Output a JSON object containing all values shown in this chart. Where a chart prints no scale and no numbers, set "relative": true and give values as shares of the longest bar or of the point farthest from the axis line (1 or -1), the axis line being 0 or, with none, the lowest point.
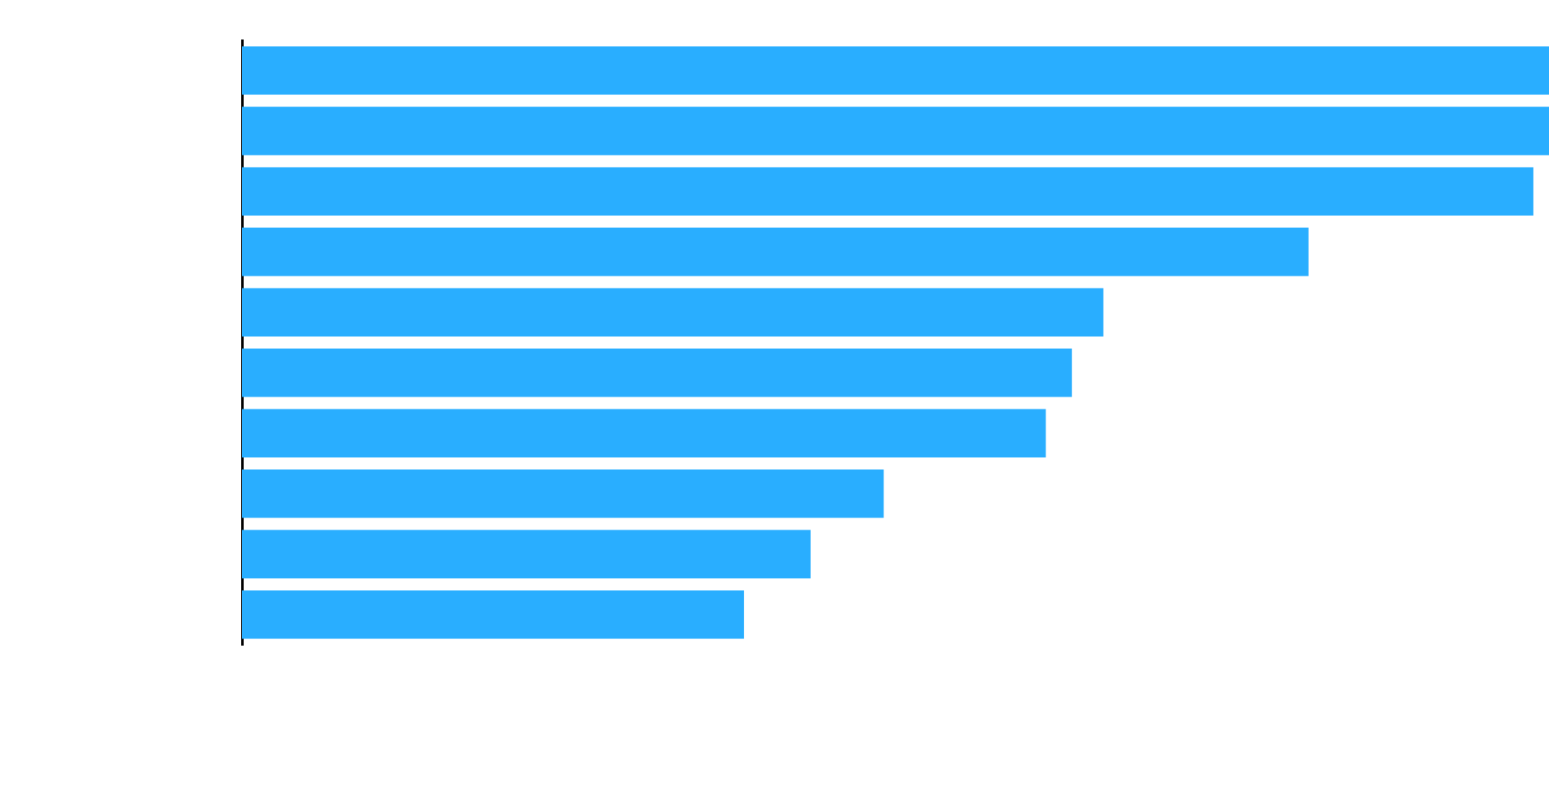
{
  "chart_data": {
    "type": "bar",
    "orientation": "horizontal",
    "relative": true,
    "categories": [
      null,
      null,
      null,
      null,
      null,
      null,
      null,
      null,
      null,
      null
    ],
    "values": [
      1,
      1,
      0.988,
      0.816,
      0.659,
      0.635,
      0.615,
      0.491,
      0.435,
      0.384
    ],
    "color": "#29aeff",
    "grid": false,
    "legend": false
  }
}
